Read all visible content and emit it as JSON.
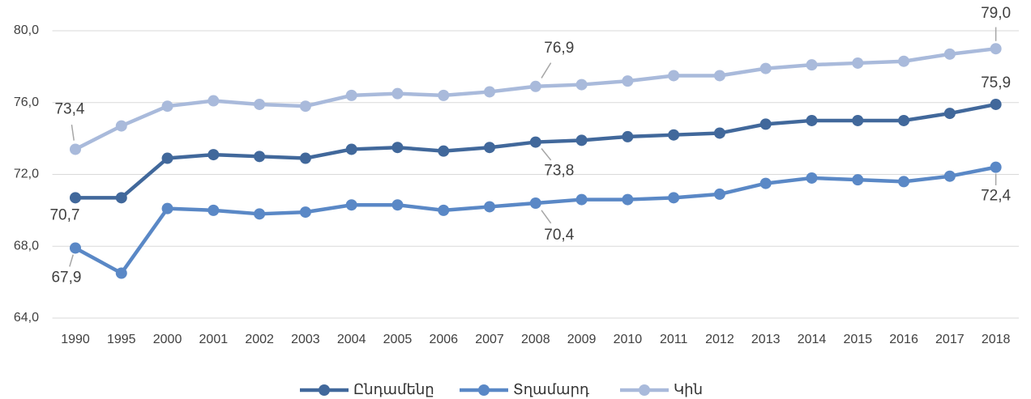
{
  "chart_data": {
    "type": "line",
    "categories": [
      "1990",
      "1995",
      "2000",
      "2001",
      "2002",
      "2003",
      "2004",
      "2005",
      "2006",
      "2007",
      "2008",
      "2009",
      "2010",
      "2011",
      "2012",
      "2013",
      "2014",
      "2015",
      "2016",
      "2017",
      "2018"
    ],
    "series": [
      {
        "name": "Ընդամենը",
        "color": "#41689b",
        "values": [
          70.7,
          70.7,
          72.9,
          73.1,
          73.0,
          72.9,
          73.4,
          73.5,
          73.3,
          73.5,
          73.8,
          73.9,
          74.1,
          74.2,
          74.3,
          74.8,
          75.0,
          75.0,
          75.0,
          75.4,
          75.9
        ],
        "value_labels": [
          "70,7",
          null,
          null,
          null,
          null,
          null,
          null,
          null,
          null,
          null,
          "73,8",
          null,
          null,
          null,
          null,
          null,
          null,
          null,
          null,
          null,
          "75,9"
        ]
      },
      {
        "name": "Տղամարդ",
        "color": "#5a88c6",
        "values": [
          67.9,
          66.5,
          70.1,
          70.0,
          69.8,
          69.9,
          70.3,
          70.3,
          70.0,
          70.2,
          70.4,
          70.6,
          70.6,
          70.7,
          70.9,
          71.5,
          71.8,
          71.7,
          71.6,
          71.9,
          72.4
        ],
        "value_labels": [
          "67,9",
          null,
          null,
          null,
          null,
          null,
          null,
          null,
          null,
          null,
          "70,4",
          null,
          null,
          null,
          null,
          null,
          null,
          null,
          null,
          null,
          "72,4"
        ]
      },
      {
        "name": "Կին",
        "color": "#a9badb",
        "values": [
          73.4,
          74.7,
          75.8,
          76.1,
          75.9,
          75.8,
          76.4,
          76.5,
          76.4,
          76.6,
          76.9,
          77.0,
          77.2,
          77.5,
          77.5,
          77.9,
          78.1,
          78.2,
          78.3,
          78.7,
          79.0
        ],
        "value_labels": [
          "73,4",
          null,
          null,
          null,
          null,
          null,
          null,
          null,
          null,
          null,
          "76,9",
          null,
          null,
          null,
          null,
          null,
          null,
          null,
          null,
          null,
          "79,0"
        ]
      }
    ],
    "ylim": [
      64,
      80
    ],
    "yticks": [
      {
        "value": 64,
        "label": "64,0"
      },
      {
        "value": 68,
        "label": "68,0"
      },
      {
        "value": 72,
        "label": "72,0"
      },
      {
        "value": 76,
        "label": "76,0"
      },
      {
        "value": 80,
        "label": "80,0"
      }
    ],
    "grid": true,
    "legend": "bottom"
  }
}
